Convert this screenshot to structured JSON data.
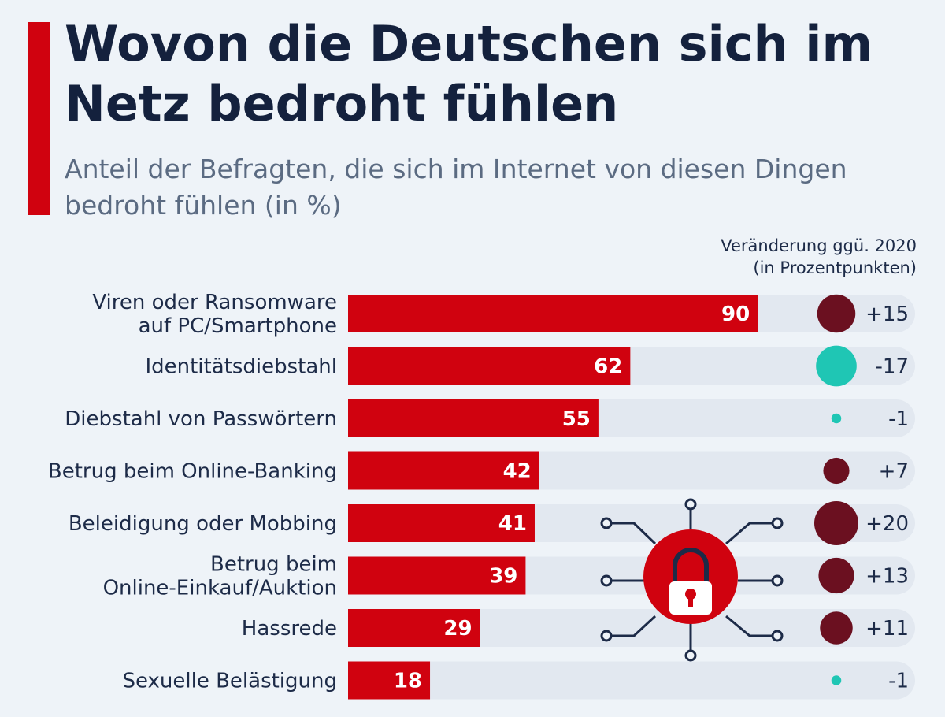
{
  "header": {
    "title": "Wovon die Deutschen sich im Netz bedroht fühlen",
    "subtitle": "Anteil der Befragten, die sich im Internet von diesen Dingen bedroht fühlen (in %)",
    "change_header_line1": "Veränderung ggü. 2020",
    "change_header_line2": "(in Prozentpunkten)"
  },
  "colors": {
    "accent": "#d0020f",
    "bar": "#d0020f",
    "track": "#e2e8f0",
    "increase": "#6b1020",
    "decrease": "#1fc6b4",
    "lock_circle": "#d0020f",
    "circuit": "#1d2b48"
  },
  "icons": [
    "padlock-icon"
  ],
  "chart_data": {
    "type": "bar",
    "orientation": "horizontal",
    "title": "Wovon die Deutschen sich im Netz bedroht fühlen",
    "subtitle": "Anteil der Befragten, die sich im Internet von diesen Dingen bedroht fühlen (in %)",
    "xlim": [
      0,
      100
    ],
    "categories": [
      [
        "Viren oder Ransomware",
        "auf PC/Smartphone"
      ],
      [
        "Identitätsdiebstahl"
      ],
      [
        "Diebstahl von Passwörtern"
      ],
      [
        "Betrug beim Online-Banking"
      ],
      [
        "Beleidigung oder Mobbing"
      ],
      [
        "Betrug beim",
        "Online-Einkauf/Auktion"
      ],
      [
        "Hassrede"
      ],
      [
        "Sexuelle Belästigung"
      ]
    ],
    "values": [
      90,
      62,
      55,
      42,
      41,
      39,
      29,
      18
    ],
    "value_labels": [
      "90",
      "62",
      "55",
      "42",
      "41",
      "39",
      "29",
      "18"
    ],
    "change_values": [
      15,
      -17,
      -1,
      7,
      20,
      13,
      11,
      -1
    ],
    "change_labels": [
      "+15",
      "-17",
      "-1",
      "+7",
      "+20",
      "+13",
      "+11",
      "-1"
    ],
    "change_title": "Veränderung ggü. 2020 (in Prozentpunkten)"
  }
}
